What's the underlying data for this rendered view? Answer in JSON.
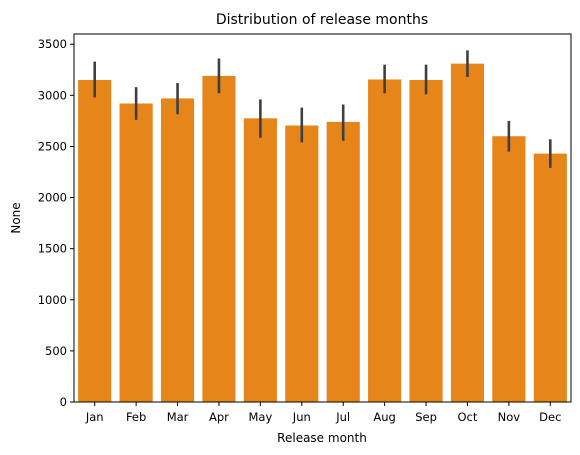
{
  "chart_data": {
    "type": "bar",
    "title": "Distribution of release months",
    "xlabel": "Release month",
    "ylabel": "None",
    "categories": [
      "Jan",
      "Feb",
      "Mar",
      "Apr",
      "May",
      "Jun",
      "Jul",
      "Aug",
      "Sep",
      "Oct",
      "Nov",
      "Dec"
    ],
    "values": [
      3150,
      2920,
      2970,
      3190,
      2775,
      2705,
      2740,
      3155,
      3150,
      3310,
      2600,
      2430
    ],
    "error_low": [
      2980,
      2760,
      2815,
      3020,
      2585,
      2540,
      2555,
      3020,
      3010,
      3180,
      2450,
      2290
    ],
    "error_high": [
      3330,
      3080,
      3120,
      3360,
      2960,
      2880,
      2910,
      3300,
      3300,
      3440,
      2750,
      2570
    ],
    "ylim": [
      0,
      3600
    ],
    "yticks": [
      0,
      500,
      1000,
      1500,
      2000,
      2500,
      3000,
      3500
    ],
    "grid": false,
    "bar_color": "#e6851a",
    "error_color": "#3f3f3f"
  }
}
